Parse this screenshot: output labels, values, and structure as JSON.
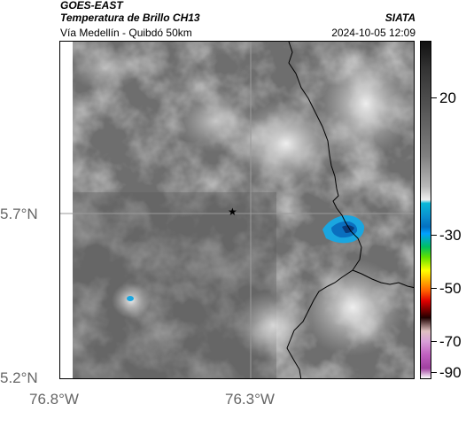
{
  "header": {
    "satellite": "GOES-EAST",
    "product": "Temperatura de Brillo CH13",
    "route": "Vía Medellín - Quibdó 50km",
    "brand": "SIATA",
    "timestamp": "2024-10-05 12:09"
  },
  "map": {
    "lat_labels": [
      "5.7°N",
      "5.2°N"
    ],
    "lon_labels": [
      "76.8°W",
      "76.3°W"
    ],
    "marker_icon": "star-icon"
  },
  "colorbar": {
    "labels": [
      "20",
      "-30",
      "-50",
      "-70",
      "-90"
    ]
  }
}
